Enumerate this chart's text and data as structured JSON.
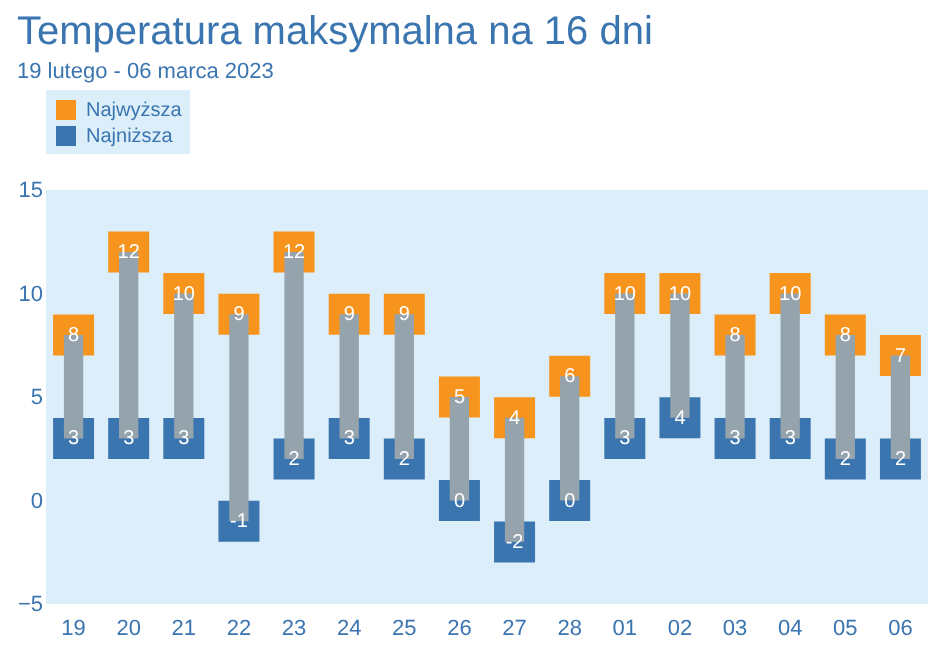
{
  "chart_data": {
    "type": "bar",
    "title": "Temperatura maksymalna na 16 dni",
    "subtitle": "19 lutego - 06 marca 2023",
    "categories": [
      "19",
      "20",
      "21",
      "22",
      "23",
      "24",
      "25",
      "26",
      "27",
      "28",
      "01",
      "02",
      "03",
      "04",
      "05",
      "06"
    ],
    "series": [
      {
        "type": "bar",
        "color": "#95a3ad",
        "base": [
          3,
          3,
          3,
          -1,
          2,
          3,
          2,
          0,
          -2,
          0,
          3,
          4,
          3,
          3,
          2,
          2
        ],
        "values": [
          5,
          9,
          7,
          10,
          10,
          6,
          7,
          5,
          6,
          6,
          7,
          6,
          5,
          7,
          6,
          5
        ]
      },
      {
        "type": "scatter",
        "name": "Najwyższa",
        "color": "#f7941d",
        "marker": "square",
        "values": [
          8,
          12,
          10,
          9,
          12,
          9,
          9,
          5,
          4,
          6,
          10,
          10,
          8,
          10,
          8,
          7
        ],
        "value_labels": [
          "8",
          "12",
          "10",
          "9",
          "12",
          "9",
          "9",
          "5",
          "4",
          "6",
          "10",
          "10",
          "8",
          "10",
          "8",
          "7"
        ]
      },
      {
        "type": "scatter",
        "name": "Najniższa",
        "color": "#3b75b0",
        "marker": "square",
        "values": [
          3,
          3,
          3,
          -1,
          2,
          3,
          2,
          0,
          -2,
          0,
          3,
          4,
          3,
          3,
          2,
          2
        ],
        "value_labels": [
          "3",
          "3",
          "3",
          "-1",
          "2",
          "3",
          "2",
          "0",
          "-2",
          "0",
          "3",
          "4",
          "3",
          "3",
          "2",
          "2"
        ]
      }
    ],
    "ylim": [
      -5,
      15
    ],
    "yticks": [
      -5,
      0,
      5,
      10,
      15
    ],
    "legend": "top left"
  }
}
